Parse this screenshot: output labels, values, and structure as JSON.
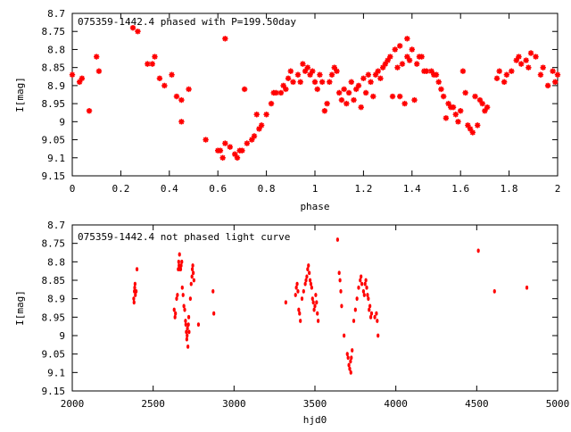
{
  "chart_data": [
    {
      "type": "scatter",
      "title": "075359-1442.4 phased with P=199.50day",
      "xlabel": "phase",
      "ylabel": "I[mag]",
      "xlim": [
        0,
        2
      ],
      "ylim": [
        9.15,
        8.7
      ],
      "y_inverted": true,
      "xticks": [
        "0",
        "0.2",
        "0.4",
        "0.6",
        "0.8",
        "1",
        "1.2",
        "1.4",
        "1.6",
        "1.8",
        "2"
      ],
      "yticks": [
        "8.7",
        "8.75",
        "8.8",
        "8.85",
        "8.9",
        "8.95",
        "9",
        "9.05",
        "9.1",
        "9.15"
      ],
      "marker": "star",
      "color": "#ff0000",
      "points": [
        [
          0.0,
          8.87
        ],
        [
          0.03,
          8.89
        ],
        [
          0.04,
          8.88
        ],
        [
          0.07,
          8.97
        ],
        [
          0.1,
          8.82
        ],
        [
          0.11,
          8.86
        ],
        [
          0.25,
          8.74
        ],
        [
          0.27,
          8.75
        ],
        [
          0.31,
          8.84
        ],
        [
          0.33,
          8.84
        ],
        [
          0.34,
          8.82
        ],
        [
          0.36,
          8.88
        ],
        [
          0.38,
          8.9
        ],
        [
          0.41,
          8.87
        ],
        [
          0.43,
          8.93
        ],
        [
          0.45,
          9.0
        ],
        [
          0.45,
          8.94
        ],
        [
          0.48,
          8.91
        ],
        [
          0.55,
          9.05
        ],
        [
          0.6,
          9.08
        ],
        [
          0.61,
          9.08
        ],
        [
          0.62,
          9.1
        ],
        [
          0.63,
          9.06
        ],
        [
          0.63,
          8.77
        ],
        [
          0.65,
          9.07
        ],
        [
          0.67,
          9.09
        ],
        [
          0.68,
          9.1
        ],
        [
          0.69,
          9.08
        ],
        [
          0.7,
          9.08
        ],
        [
          0.71,
          8.91
        ],
        [
          0.72,
          9.06
        ],
        [
          0.74,
          9.05
        ],
        [
          0.75,
          9.04
        ],
        [
          0.76,
          8.98
        ],
        [
          0.77,
          9.02
        ],
        [
          0.78,
          9.01
        ],
        [
          0.8,
          8.98
        ],
        [
          0.82,
          8.95
        ],
        [
          0.83,
          8.92
        ],
        [
          0.84,
          8.92
        ],
        [
          0.86,
          8.92
        ],
        [
          0.87,
          8.9
        ],
        [
          0.88,
          8.91
        ],
        [
          0.89,
          8.88
        ],
        [
          0.9,
          8.86
        ],
        [
          0.91,
          8.89
        ],
        [
          0.93,
          8.87
        ],
        [
          0.94,
          8.89
        ],
        [
          0.95,
          8.84
        ],
        [
          0.96,
          8.86
        ],
        [
          0.97,
          8.85
        ],
        [
          0.98,
          8.87
        ],
        [
          0.99,
          8.86
        ],
        [
          1.0,
          8.89
        ],
        [
          1.01,
          8.91
        ],
        [
          1.02,
          8.87
        ],
        [
          1.03,
          8.89
        ],
        [
          1.04,
          8.97
        ],
        [
          1.05,
          8.95
        ],
        [
          1.06,
          8.89
        ],
        [
          1.07,
          8.87
        ],
        [
          1.08,
          8.85
        ],
        [
          1.09,
          8.86
        ],
        [
          1.1,
          8.92
        ],
        [
          1.11,
          8.94
        ],
        [
          1.12,
          8.91
        ],
        [
          1.13,
          8.95
        ],
        [
          1.14,
          8.92
        ],
        [
          1.15,
          8.89
        ],
        [
          1.16,
          8.94
        ],
        [
          1.17,
          8.91
        ],
        [
          1.18,
          8.9
        ],
        [
          1.19,
          8.96
        ],
        [
          1.2,
          8.88
        ],
        [
          1.21,
          8.92
        ],
        [
          1.22,
          8.87
        ],
        [
          1.23,
          8.89
        ],
        [
          1.24,
          8.93
        ],
        [
          1.25,
          8.87
        ],
        [
          1.26,
          8.86
        ],
        [
          1.27,
          8.88
        ],
        [
          1.28,
          8.85
        ],
        [
          1.29,
          8.84
        ],
        [
          1.3,
          8.83
        ],
        [
          1.31,
          8.82
        ],
        [
          1.32,
          8.93
        ],
        [
          1.33,
          8.8
        ],
        [
          1.34,
          8.85
        ],
        [
          1.35,
          8.93
        ],
        [
          1.35,
          8.79
        ],
        [
          1.36,
          8.84
        ],
        [
          1.37,
          8.95
        ],
        [
          1.38,
          8.82
        ],
        [
          1.38,
          8.77
        ],
        [
          1.39,
          8.83
        ],
        [
          1.4,
          8.8
        ],
        [
          1.41,
          8.94
        ],
        [
          1.42,
          8.84
        ],
        [
          1.43,
          8.82
        ],
        [
          1.44,
          8.82
        ],
        [
          1.45,
          8.86
        ],
        [
          1.46,
          8.86
        ],
        [
          1.48,
          8.86
        ],
        [
          1.49,
          8.87
        ],
        [
          1.5,
          8.87
        ],
        [
          1.51,
          8.89
        ],
        [
          1.52,
          8.91
        ],
        [
          1.53,
          8.93
        ],
        [
          1.54,
          8.99
        ],
        [
          1.55,
          8.95
        ],
        [
          1.56,
          8.96
        ],
        [
          1.57,
          8.96
        ],
        [
          1.58,
          8.98
        ],
        [
          1.59,
          9.0
        ],
        [
          1.6,
          8.97
        ],
        [
          1.61,
          8.86
        ],
        [
          1.62,
          8.92
        ],
        [
          1.63,
          9.01
        ],
        [
          1.64,
          9.02
        ],
        [
          1.65,
          9.03
        ],
        [
          1.66,
          8.93
        ],
        [
          1.67,
          9.01
        ],
        [
          1.68,
          8.94
        ],
        [
          1.69,
          8.95
        ],
        [
          1.7,
          8.97
        ],
        [
          1.71,
          8.96
        ],
        [
          1.75,
          8.88
        ],
        [
          1.76,
          8.86
        ],
        [
          1.78,
          8.89
        ],
        [
          1.79,
          8.87
        ],
        [
          1.81,
          8.86
        ],
        [
          1.83,
          8.83
        ],
        [
          1.84,
          8.82
        ],
        [
          1.85,
          8.84
        ],
        [
          1.87,
          8.83
        ],
        [
          1.88,
          8.85
        ],
        [
          1.89,
          8.81
        ],
        [
          1.91,
          8.82
        ],
        [
          1.93,
          8.87
        ],
        [
          1.94,
          8.85
        ],
        [
          1.96,
          8.9
        ],
        [
          1.98,
          8.86
        ],
        [
          1.99,
          8.89
        ],
        [
          2.0,
          8.87
        ]
      ]
    },
    {
      "type": "scatter",
      "title": "075359-1442.4 not phased light curve",
      "xlabel": "hjd0",
      "ylabel": "I[mag]",
      "xlim": [
        2000,
        5000
      ],
      "ylim": [
        9.15,
        8.7
      ],
      "y_inverted": true,
      "xticks": [
        "2000",
        "2500",
        "3000",
        "3500",
        "4000",
        "4500",
        "5000"
      ],
      "yticks": [
        "8.7",
        "8.75",
        "8.8",
        "8.85",
        "8.9",
        "8.95",
        "9",
        "9.05",
        "9.1",
        "9.15"
      ],
      "marker": "dot",
      "color": "#ff0000",
      "points": [
        [
          2380,
          8.9
        ],
        [
          2382,
          8.91
        ],
        [
          2384,
          8.88
        ],
        [
          2386,
          8.87
        ],
        [
          2388,
          8.86
        ],
        [
          2390,
          8.89
        ],
        [
          2395,
          8.88
        ],
        [
          2400,
          8.82
        ],
        [
          2630,
          8.93
        ],
        [
          2635,
          8.95
        ],
        [
          2638,
          8.94
        ],
        [
          2645,
          8.9
        ],
        [
          2650,
          8.89
        ],
        [
          2655,
          8.82
        ],
        [
          2658,
          8.8
        ],
        [
          2660,
          8.81
        ],
        [
          2663,
          8.78
        ],
        [
          2666,
          8.82
        ],
        [
          2670,
          8.82
        ],
        [
          2673,
          8.81
        ],
        [
          2677,
          8.8
        ],
        [
          2680,
          8.87
        ],
        [
          2685,
          8.89
        ],
        [
          2690,
          8.92
        ],
        [
          2695,
          8.93
        ],
        [
          2700,
          8.96
        ],
        [
          2702,
          8.97
        ],
        [
          2705,
          8.99
        ],
        [
          2708,
          9.01
        ],
        [
          2710,
          9.0
        ],
        [
          2712,
          8.98
        ],
        [
          2715,
          9.03
        ],
        [
          2718,
          8.97
        ],
        [
          2720,
          8.95
        ],
        [
          2722,
          8.99
        ],
        [
          2730,
          8.9
        ],
        [
          2735,
          8.86
        ],
        [
          2740,
          8.84
        ],
        [
          2742,
          8.82
        ],
        [
          2745,
          8.81
        ],
        [
          2748,
          8.83
        ],
        [
          2752,
          8.85
        ],
        [
          2780,
          8.97
        ],
        [
          2870,
          8.88
        ],
        [
          2875,
          8.94
        ],
        [
          3320,
          8.91
        ],
        [
          3380,
          8.89
        ],
        [
          3385,
          8.87
        ],
        [
          3390,
          8.86
        ],
        [
          3395,
          8.88
        ],
        [
          3400,
          8.93
        ],
        [
          3405,
          8.94
        ],
        [
          3410,
          8.96
        ],
        [
          3420,
          8.9
        ],
        [
          3430,
          8.88
        ],
        [
          3440,
          8.86
        ],
        [
          3445,
          8.85
        ],
        [
          3450,
          8.84
        ],
        [
          3455,
          8.82
        ],
        [
          3460,
          8.81
        ],
        [
          3465,
          8.83
        ],
        [
          3470,
          8.85
        ],
        [
          3475,
          8.86
        ],
        [
          3480,
          8.87
        ],
        [
          3485,
          8.9
        ],
        [
          3490,
          8.91
        ],
        [
          3495,
          8.93
        ],
        [
          3500,
          8.92
        ],
        [
          3505,
          8.89
        ],
        [
          3510,
          8.91
        ],
        [
          3515,
          8.94
        ],
        [
          3520,
          8.96
        ],
        [
          3640,
          8.74
        ],
        [
          3650,
          8.83
        ],
        [
          3655,
          8.85
        ],
        [
          3660,
          8.88
        ],
        [
          3665,
          8.92
        ],
        [
          3680,
          9.0
        ],
        [
          3700,
          9.05
        ],
        [
          3705,
          9.06
        ],
        [
          3710,
          9.08
        ],
        [
          3715,
          9.09
        ],
        [
          3720,
          9.07
        ],
        [
          3722,
          9.1
        ],
        [
          3725,
          9.06
        ],
        [
          3730,
          9.04
        ],
        [
          3740,
          8.96
        ],
        [
          3750,
          8.93
        ],
        [
          3760,
          8.9
        ],
        [
          3770,
          8.87
        ],
        [
          3780,
          8.85
        ],
        [
          3785,
          8.84
        ],
        [
          3790,
          8.86
        ],
        [
          3800,
          8.88
        ],
        [
          3805,
          8.89
        ],
        [
          3810,
          8.86
        ],
        [
          3815,
          8.85
        ],
        [
          3820,
          8.87
        ],
        [
          3825,
          8.89
        ],
        [
          3830,
          8.9
        ],
        [
          3835,
          8.93
        ],
        [
          3840,
          8.92
        ],
        [
          3845,
          8.95
        ],
        [
          3850,
          8.94
        ],
        [
          3870,
          8.95
        ],
        [
          3880,
          8.94
        ],
        [
          3885,
          8.96
        ],
        [
          3890,
          9.0
        ],
        [
          4510,
          8.77
        ],
        [
          4610,
          8.88
        ],
        [
          4810,
          8.87
        ]
      ]
    }
  ]
}
